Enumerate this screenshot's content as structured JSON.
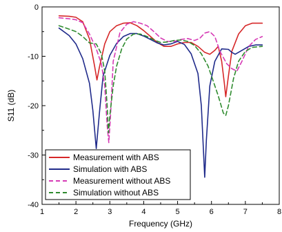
{
  "chart_data": {
    "type": "line",
    "xlabel": "Frequency (GHz)",
    "ylabel": "S11 (dB)",
    "xlim": [
      1,
      8
    ],
    "ylim": [
      -40,
      0
    ],
    "xticks": [
      1,
      2,
      3,
      4,
      5,
      6,
      7,
      8
    ],
    "yticks": [
      0,
      -10,
      -20,
      -30,
      -40
    ],
    "grid": false,
    "legend_position": "bottom-left",
    "series": [
      {
        "name": "Measurement with ABS",
        "color": "#d62728",
        "dash": "solid",
        "points": [
          [
            1.5,
            -1.8
          ],
          [
            1.8,
            -1.9
          ],
          [
            2.0,
            -2.1
          ],
          [
            2.2,
            -3.0
          ],
          [
            2.4,
            -6.5
          ],
          [
            2.55,
            -12.0
          ],
          [
            2.62,
            -14.8
          ],
          [
            2.7,
            -12.0
          ],
          [
            2.85,
            -7.5
          ],
          [
            3.0,
            -5.0
          ],
          [
            3.2,
            -3.8
          ],
          [
            3.4,
            -3.3
          ],
          [
            3.6,
            -3.2
          ],
          [
            3.8,
            -3.8
          ],
          [
            4.0,
            -4.8
          ],
          [
            4.2,
            -6.0
          ],
          [
            4.4,
            -7.2
          ],
          [
            4.6,
            -8.0
          ],
          [
            4.8,
            -8.0
          ],
          [
            5.0,
            -7.5
          ],
          [
            5.2,
            -7.2
          ],
          [
            5.4,
            -7.2
          ],
          [
            5.6,
            -8.0
          ],
          [
            5.8,
            -9.2
          ],
          [
            5.95,
            -9.6
          ],
          [
            6.1,
            -8.8
          ],
          [
            6.2,
            -8.0
          ],
          [
            6.3,
            -11.0
          ],
          [
            6.38,
            -15.5
          ],
          [
            6.42,
            -18.2
          ],
          [
            6.5,
            -14.0
          ],
          [
            6.6,
            -9.0
          ],
          [
            6.8,
            -5.5
          ],
          [
            7.0,
            -3.8
          ],
          [
            7.2,
            -3.3
          ],
          [
            7.5,
            -3.3
          ]
        ]
      },
      {
        "name": "Simulation with ABS",
        "color": "#1f2a8a",
        "dash": "solid",
        "points": [
          [
            1.5,
            -4.3
          ],
          [
            1.8,
            -5.8
          ],
          [
            2.0,
            -7.5
          ],
          [
            2.2,
            -10.5
          ],
          [
            2.4,
            -15.5
          ],
          [
            2.5,
            -21.0
          ],
          [
            2.6,
            -28.7
          ],
          [
            2.7,
            -21.0
          ],
          [
            2.8,
            -14.0
          ],
          [
            3.0,
            -9.8
          ],
          [
            3.2,
            -7.4
          ],
          [
            3.4,
            -6.0
          ],
          [
            3.6,
            -5.4
          ],
          [
            3.8,
            -5.4
          ],
          [
            4.0,
            -5.9
          ],
          [
            4.2,
            -6.6
          ],
          [
            4.4,
            -7.3
          ],
          [
            4.6,
            -7.7
          ],
          [
            4.8,
            -7.5
          ],
          [
            5.0,
            -7.0
          ],
          [
            5.2,
            -7.6
          ],
          [
            5.4,
            -9.5
          ],
          [
            5.6,
            -13.5
          ],
          [
            5.7,
            -20.0
          ],
          [
            5.8,
            -34.5
          ],
          [
            5.85,
            -27.0
          ],
          [
            5.95,
            -16.0
          ],
          [
            6.1,
            -11.0
          ],
          [
            6.3,
            -8.5
          ],
          [
            6.5,
            -8.6
          ],
          [
            6.6,
            -9.2
          ],
          [
            6.7,
            -9.6
          ],
          [
            6.9,
            -8.8
          ],
          [
            7.1,
            -8.0
          ],
          [
            7.3,
            -7.7
          ],
          [
            7.5,
            -7.7
          ]
        ]
      },
      {
        "name": "Measurement without ABS",
        "color": "#d63ab5",
        "dash": "dashed",
        "points": [
          [
            1.5,
            -2.2
          ],
          [
            1.8,
            -2.4
          ],
          [
            2.0,
            -2.6
          ],
          [
            2.2,
            -3.2
          ],
          [
            2.4,
            -5.5
          ],
          [
            2.6,
            -8.5
          ],
          [
            2.75,
            -11.5
          ],
          [
            2.85,
            -16.0
          ],
          [
            2.92,
            -24.0
          ],
          [
            2.97,
            -27.5
          ],
          [
            3.02,
            -22.0
          ],
          [
            3.1,
            -11.0
          ],
          [
            3.3,
            -5.2
          ],
          [
            3.5,
            -3.5
          ],
          [
            3.7,
            -3.0
          ],
          [
            3.9,
            -3.3
          ],
          [
            4.1,
            -3.8
          ],
          [
            4.3,
            -5.0
          ],
          [
            4.5,
            -6.3
          ],
          [
            4.7,
            -7.0
          ],
          [
            4.9,
            -7.0
          ],
          [
            5.1,
            -6.6
          ],
          [
            5.3,
            -6.4
          ],
          [
            5.5,
            -6.8
          ],
          [
            5.65,
            -6.4
          ],
          [
            5.8,
            -5.3
          ],
          [
            5.95,
            -5.0
          ],
          [
            6.1,
            -6.0
          ],
          [
            6.25,
            -9.0
          ],
          [
            6.45,
            -11.5
          ],
          [
            6.6,
            -12.5
          ],
          [
            6.75,
            -13.0
          ],
          [
            6.9,
            -11.0
          ],
          [
            7.1,
            -8.0
          ],
          [
            7.3,
            -6.6
          ],
          [
            7.5,
            -6.0
          ]
        ]
      },
      {
        "name": "Simulation without ABS",
        "color": "#2e8b2e",
        "dash": "dashed",
        "points": [
          [
            1.5,
            -3.8
          ],
          [
            1.8,
            -4.5
          ],
          [
            2.0,
            -5.0
          ],
          [
            2.2,
            -6.0
          ],
          [
            2.4,
            -7.3
          ],
          [
            2.6,
            -7.5
          ],
          [
            2.75,
            -9.5
          ],
          [
            2.85,
            -13.0
          ],
          [
            2.92,
            -20.0
          ],
          [
            2.96,
            -25.5
          ],
          [
            3.0,
            -22.0
          ],
          [
            3.1,
            -16.0
          ],
          [
            3.2,
            -12.0
          ],
          [
            3.35,
            -8.5
          ],
          [
            3.5,
            -6.5
          ],
          [
            3.7,
            -5.5
          ],
          [
            3.9,
            -5.5
          ],
          [
            4.1,
            -6.0
          ],
          [
            4.3,
            -6.7
          ],
          [
            4.5,
            -7.2
          ],
          [
            4.7,
            -7.1
          ],
          [
            4.9,
            -6.8
          ],
          [
            5.1,
            -6.7
          ],
          [
            5.3,
            -7.0
          ],
          [
            5.5,
            -7.8
          ],
          [
            5.7,
            -9.5
          ],
          [
            5.9,
            -12.0
          ],
          [
            6.05,
            -15.0
          ],
          [
            6.2,
            -18.0
          ],
          [
            6.35,
            -21.5
          ],
          [
            6.42,
            -22.0
          ],
          [
            6.5,
            -20.0
          ],
          [
            6.65,
            -14.5
          ],
          [
            6.8,
            -11.0
          ],
          [
            7.0,
            -9.0
          ],
          [
            7.2,
            -8.2
          ],
          [
            7.5,
            -8.0
          ]
        ]
      }
    ]
  }
}
